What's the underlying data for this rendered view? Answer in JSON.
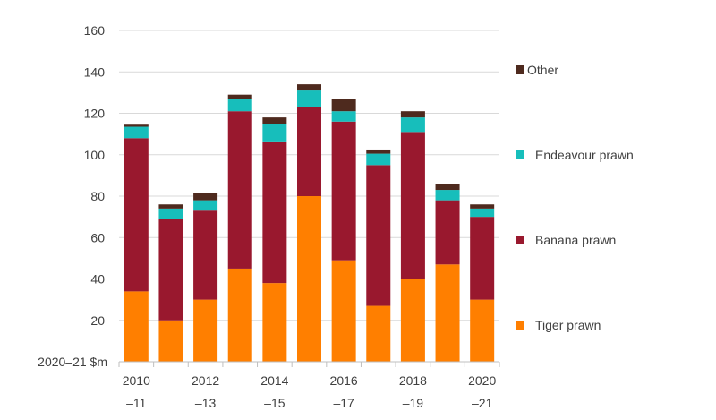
{
  "chart_data": {
    "type": "bar",
    "stacked": true,
    "ylabel": "2020–21 $m",
    "ylim": [
      0,
      160
    ],
    "yticks": [
      20,
      40,
      60,
      80,
      100,
      120,
      140,
      160
    ],
    "grid": true,
    "legend_position": "right",
    "categories": [
      "2010–11",
      "2011–12",
      "2012–13",
      "2013–14",
      "2014–15",
      "2015–16",
      "2016–17",
      "2017–18",
      "2018–19",
      "2019–20",
      "2020–21"
    ],
    "x_tick_labels": [
      {
        "top": "2010",
        "bottom": "–11"
      },
      {
        "top": "2012",
        "bottom": "–13"
      },
      {
        "top": "2014",
        "bottom": "–15"
      },
      {
        "top": "2016",
        "bottom": "–17"
      },
      {
        "top": "2018",
        "bottom": "–19"
      },
      {
        "top": "2020",
        "bottom": "–21"
      }
    ],
    "series": [
      {
        "name": "Tiger prawn",
        "color": "#FF7F00",
        "values": [
          34,
          20,
          30,
          45,
          38,
          80,
          49,
          27,
          40,
          47,
          30
        ]
      },
      {
        "name": "Banana prawn",
        "color": "#99182E",
        "values": [
          74,
          49,
          43,
          76,
          68,
          43,
          67,
          68,
          71,
          31,
          40
        ]
      },
      {
        "name": "Endeavour prawn",
        "color": "#17BEBB",
        "values": [
          5.5,
          5,
          5,
          6,
          9,
          8,
          5,
          5.5,
          7,
          5,
          4
        ]
      },
      {
        "name": "Other",
        "color": "#4E2A1E",
        "values": [
          1,
          2,
          3.5,
          2,
          3,
          3,
          6,
          2,
          3,
          3,
          2
        ]
      }
    ],
    "legend_order": [
      "Other",
      "Endeavour prawn",
      "Banana prawn",
      "Tiger prawn"
    ]
  }
}
